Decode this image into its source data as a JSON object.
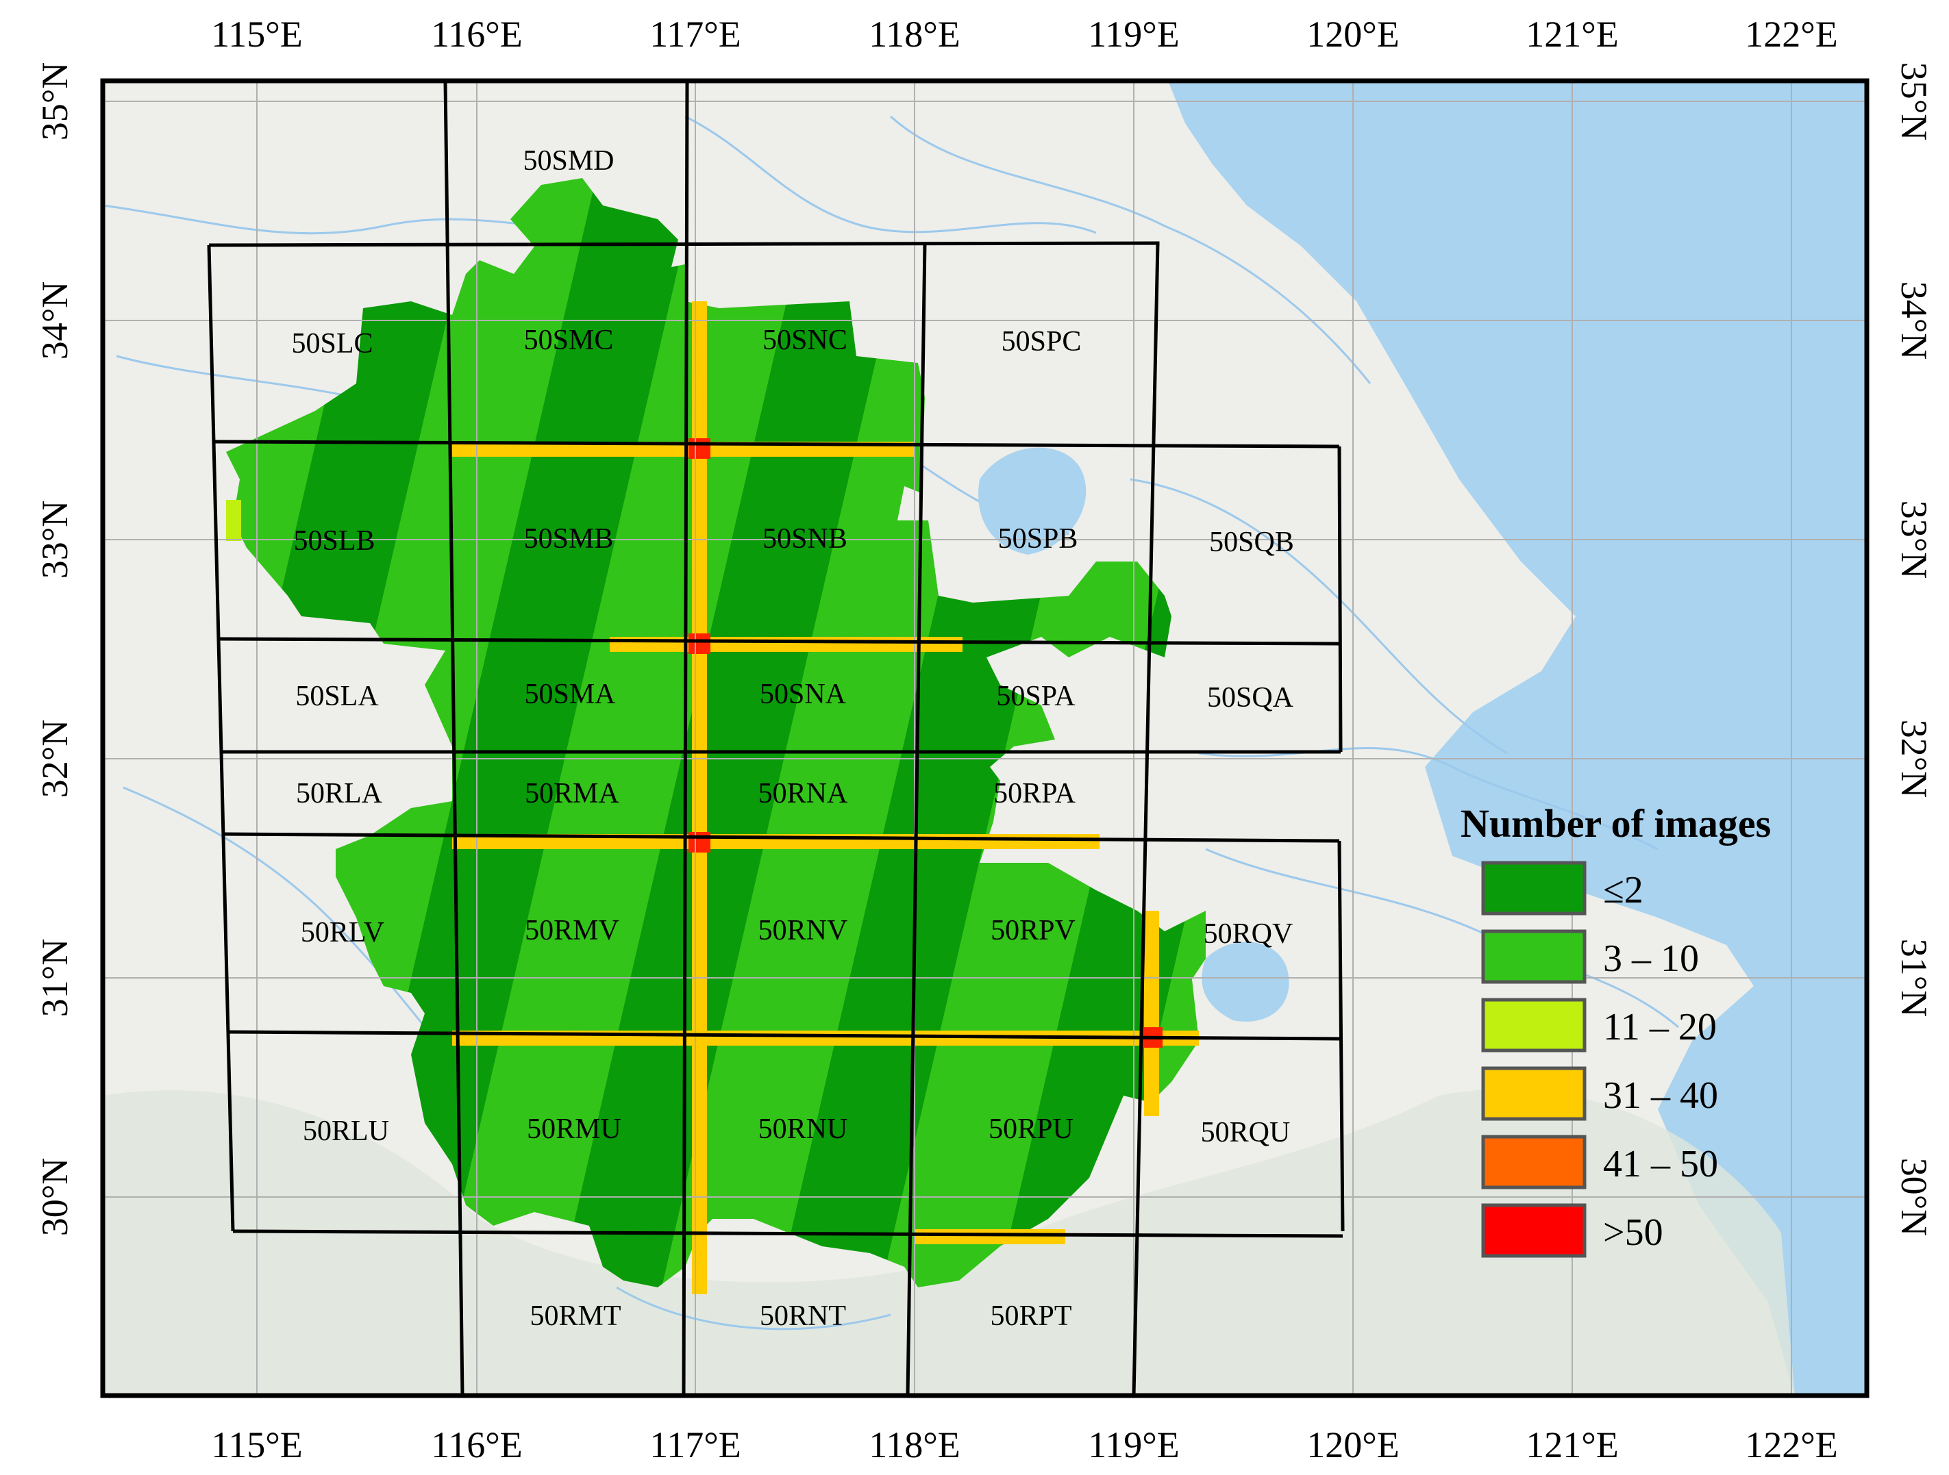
{
  "axes": {
    "lon_labels": [
      "115°E",
      "116°E",
      "117°E",
      "118°E",
      "119°E",
      "120°E",
      "121°E",
      "122°E"
    ],
    "lat_labels": [
      "35°N",
      "34°N",
      "33°N",
      "32°N",
      "31°N",
      "30°N"
    ]
  },
  "tiles": [
    "50SMD",
    "50SLC",
    "50SMC",
    "50SNC",
    "50SPC",
    "50SLB",
    "50SMB",
    "50SNB",
    "50SPB",
    "50SQB",
    "50SLA",
    "50SMA",
    "50SNA",
    "50SPA",
    "50SQA",
    "50RLA",
    "50RMA",
    "50RNA",
    "50RPA",
    "50RLV",
    "50RMV",
    "50RNV",
    "50RPV",
    "50RQV",
    "50RLU",
    "50RMU",
    "50RNU",
    "50RPU",
    "50RQU",
    "50RMT",
    "50RNT",
    "50RPT"
  ],
  "legend": {
    "title": "Number of images",
    "items": [
      {
        "label": "≤2",
        "color": "#0a9b0a"
      },
      {
        "label": "3 – 10",
        "color": "#33c41a"
      },
      {
        "label": "11 – 20",
        "color": "#bff00f"
      },
      {
        "label": "31 – 40",
        "color": "#ffcc00"
      },
      {
        "label": "41 – 50",
        "color": "#ff6600"
      },
      {
        "label": ">50",
        "color": "#ff0000"
      }
    ]
  },
  "colors": {
    "sea": "#a9d3ef",
    "land": "#eeeeea",
    "river": "#9cc9ec",
    "grid": "#000000"
  }
}
